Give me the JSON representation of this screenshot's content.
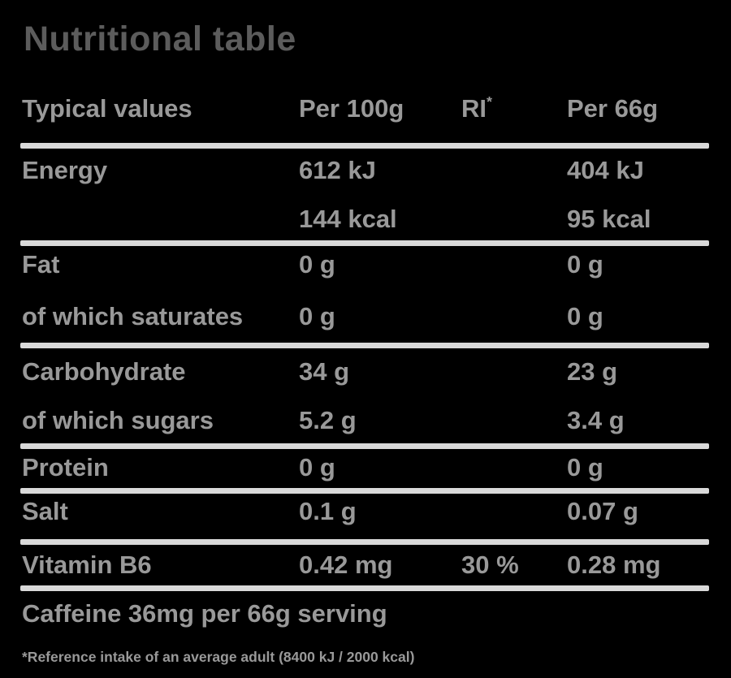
{
  "colors": {
    "background": "#000000",
    "title_text": "#5c5c5c",
    "body_text": "#999999",
    "divider": "#d9d9d9"
  },
  "title": "Nutritional table",
  "header": {
    "typical_values": "Typical values",
    "per_100g": "Per 100g",
    "ri": "RI",
    "ri_sup": "*",
    "per_serving": "Per 66g"
  },
  "table": {
    "rows": [
      {
        "label": "Energy",
        "per100": "612 kJ",
        "ri": "",
        "serving": "404 kJ"
      },
      {
        "label": "",
        "per100": "144 kcal",
        "ri": "",
        "serving": "95 kcal"
      },
      {
        "label": "Fat",
        "per100": "0 g",
        "ri": "",
        "serving": "0 g"
      },
      {
        "label": "of which saturates",
        "per100": "0 g",
        "ri": "",
        "serving": "0 g"
      },
      {
        "label": "Carbohydrate",
        "per100": "34 g",
        "ri": "",
        "serving": "23 g"
      },
      {
        "label": "of which sugars",
        "per100": "5.2 g",
        "ri": "",
        "serving": "3.4 g"
      },
      {
        "label": "Protein",
        "per100": "0 g",
        "ri": "",
        "serving": "0 g"
      },
      {
        "label": "Salt",
        "per100": "0.1 g",
        "ri": "",
        "serving": "0.07 g"
      },
      {
        "label": "Vitamin B6",
        "per100": "0.42 mg",
        "ri": "30 %",
        "serving": "0.28 mg"
      }
    ]
  },
  "caffeine_note": "Caffeine 36mg per 66g serving",
  "footnote": "*Reference intake of an average adult (8400 kJ / 2000 kcal)"
}
